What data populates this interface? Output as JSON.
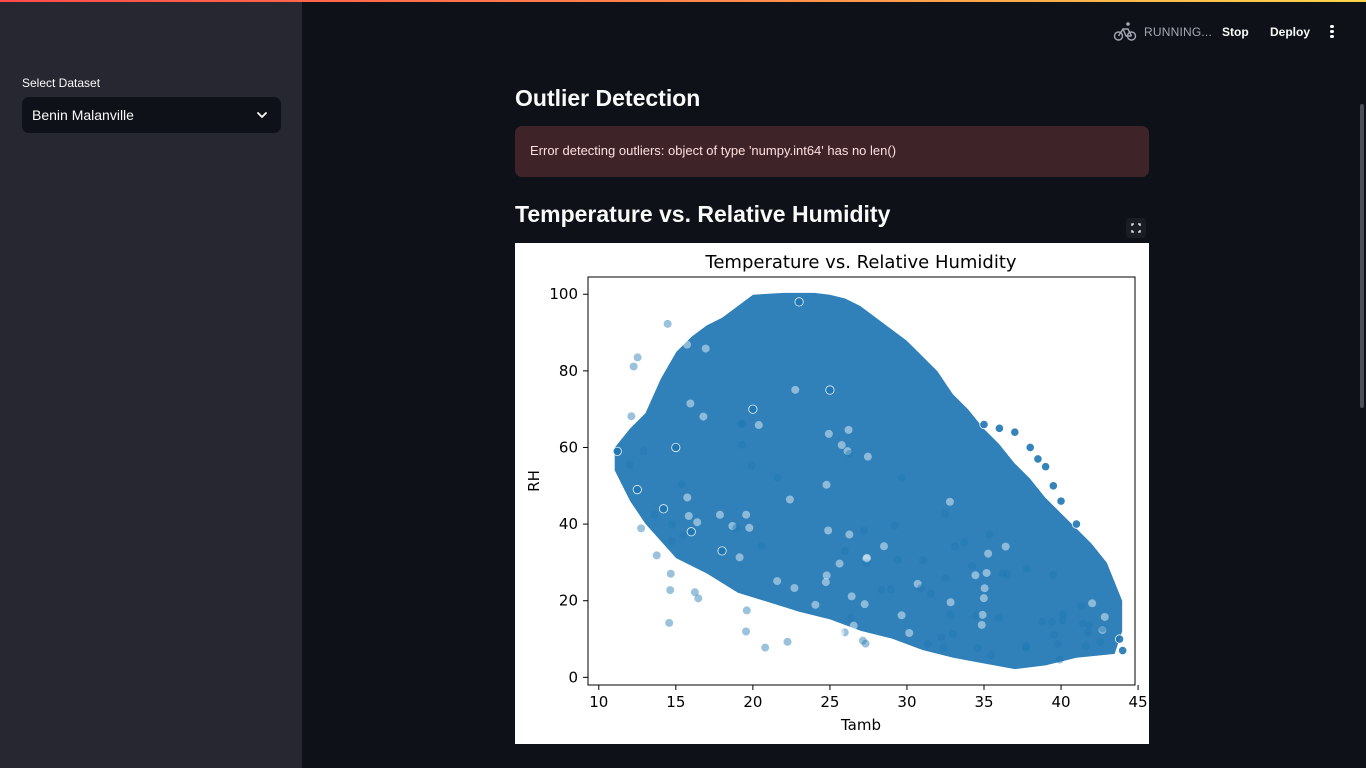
{
  "sidebar": {
    "select_label": "Select Dataset",
    "selected_value": "Benin Malanville"
  },
  "header": {
    "status_text": "RUNNING...",
    "stop_label": "Stop",
    "deploy_label": "Deploy"
  },
  "main": {
    "outlier_heading": "Outlier Detection",
    "error_message": "Error detecting outliers: object of type 'numpy.int64' has no len()",
    "scatter_heading": "Temperature vs. Relative Humidity"
  },
  "colors": {
    "app_background": "#0e1117",
    "sidebar_background": "#262730",
    "error_background": "#3e2428",
    "error_text": "#ffdede",
    "point_color": "#1f77b4"
  },
  "chart_data": {
    "type": "scatter",
    "title": "Temperature vs. Relative Humidity",
    "xlabel": "Tamb",
    "ylabel": "RH",
    "xlim": [
      9.3,
      44.8
    ],
    "ylim": [
      -2,
      104.5
    ],
    "xticks": [
      10,
      15,
      20,
      25,
      30,
      35,
      40,
      45
    ],
    "yticks": [
      0,
      20,
      40,
      60,
      80,
      100
    ],
    "grid": false,
    "legend": "none",
    "series": [
      {
        "point_cloud_outline": [
          [
            11,
            60
          ],
          [
            12,
            65
          ],
          [
            13,
            69
          ],
          [
            14,
            78
          ],
          [
            15,
            85
          ],
          [
            16,
            89
          ],
          [
            17,
            92
          ],
          [
            18,
            94
          ],
          [
            19,
            97
          ],
          [
            20,
            100
          ],
          [
            22,
            100.5
          ],
          [
            24,
            100.5
          ],
          [
            25,
            100
          ],
          [
            26,
            99
          ],
          [
            27,
            97
          ],
          [
            28,
            94
          ],
          [
            29,
            91
          ],
          [
            30,
            88
          ],
          [
            31,
            84
          ],
          [
            32,
            80
          ],
          [
            33,
            74
          ],
          [
            34,
            70
          ],
          [
            35,
            65
          ],
          [
            36,
            61
          ],
          [
            37,
            56
          ],
          [
            38,
            52
          ],
          [
            39,
            47
          ],
          [
            40,
            43
          ],
          [
            41,
            39
          ],
          [
            42,
            35
          ],
          [
            43,
            30
          ],
          [
            44,
            20
          ],
          [
            44,
            12
          ],
          [
            43.5,
            6
          ],
          [
            41,
            5
          ],
          [
            39,
            3
          ],
          [
            37,
            2
          ],
          [
            35,
            3.5
          ],
          [
            33,
            5
          ],
          [
            31,
            7
          ],
          [
            29,
            10
          ],
          [
            27,
            12
          ],
          [
            25,
            15
          ],
          [
            23,
            17
          ],
          [
            21,
            19.5
          ],
          [
            19,
            22
          ],
          [
            17,
            27
          ],
          [
            15,
            31
          ],
          [
            13,
            40
          ],
          [
            12,
            46
          ],
          [
            11,
            54
          ]
        ],
        "points": [
          [
            23,
            98
          ],
          [
            36,
            65
          ],
          [
            35,
            66
          ],
          [
            37,
            64
          ],
          [
            38,
            60
          ],
          [
            39,
            55
          ],
          [
            38.5,
            57
          ],
          [
            39.5,
            50
          ],
          [
            40,
            46
          ],
          [
            41,
            40
          ],
          [
            44,
            7
          ],
          [
            43.8,
            10
          ],
          [
            11.2,
            59
          ],
          [
            12.5,
            49
          ],
          [
            14.2,
            44
          ],
          [
            16,
            38
          ],
          [
            18,
            33
          ],
          [
            15,
            60
          ],
          [
            20,
            70
          ],
          [
            25,
            75
          ]
        ]
      }
    ]
  }
}
